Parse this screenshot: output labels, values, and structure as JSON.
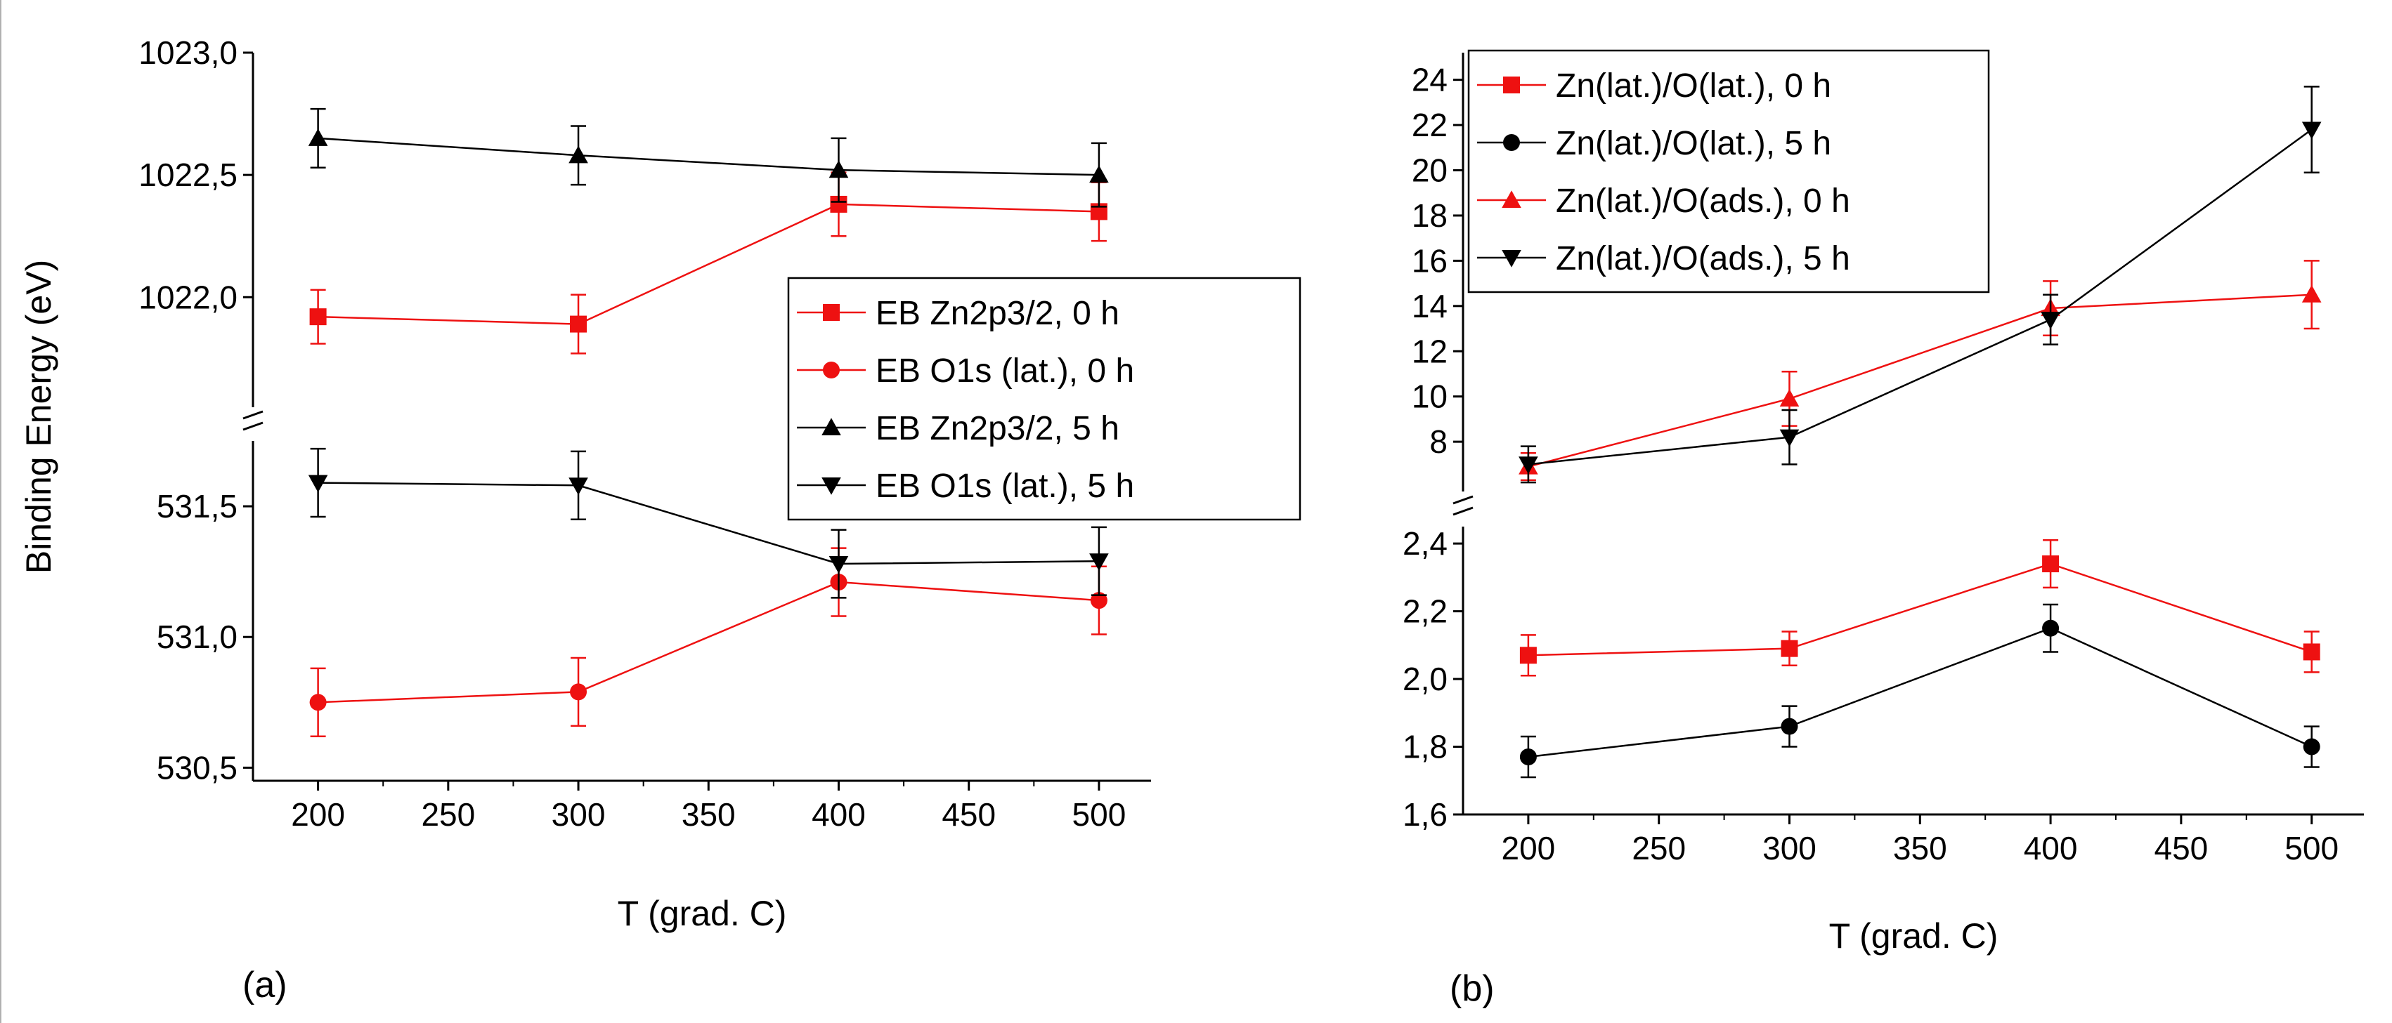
{
  "colors": {
    "red": "#ee1111",
    "black": "#000000"
  },
  "chart_data": [
    {
      "id": "a",
      "type": "line",
      "panel_label": "(a)",
      "xlabel": "T (grad. C)",
      "ylabel": "Binding Energy (eV)",
      "x": [
        200,
        300,
        400,
        500
      ],
      "xlim": [
        175,
        520
      ],
      "xticks": [
        "200",
        "250",
        "300",
        "350",
        "400",
        "450",
        "500"
      ],
      "broken_axis": true,
      "segments": {
        "upper": {
          "ylim": [
            1021.55,
            1023.0
          ],
          "yticks": [
            {
              "v": 1022.0,
              "t": "1022,0"
            },
            {
              "v": 1022.5,
              "t": "1022,5"
            },
            {
              "v": 1023.0,
              "t": "1023,0"
            }
          ]
        },
        "lower": {
          "ylim": [
            530.45,
            531.75
          ],
          "yticks": [
            {
              "v": 530.5,
              "t": "530,5"
            },
            {
              "v": 531.0,
              "t": "531,0"
            },
            {
              "v": 531.5,
              "t": "531,5"
            }
          ]
        }
      },
      "legend": {
        "placement": "middle-right"
      },
      "series": [
        {
          "name": "EB Zn2p3/2, 0 h",
          "marker": "square",
          "color": "red",
          "segment": "upper",
          "values": [
            1021.92,
            1021.89,
            1022.38,
            1022.35
          ],
          "errors": [
            0.11,
            0.12,
            0.13,
            0.12
          ]
        },
        {
          "name": "EB O1s (lat.), 0 h",
          "marker": "circle",
          "color": "red",
          "segment": "lower",
          "values": [
            530.75,
            530.79,
            531.21,
            531.14
          ],
          "errors": [
            0.13,
            0.13,
            0.13,
            0.13
          ]
        },
        {
          "name": "EB Zn2p3/2, 5 h",
          "marker": "triangle-up",
          "color": "black",
          "segment": "upper",
          "values": [
            1022.65,
            1022.58,
            1022.52,
            1022.5
          ],
          "errors": [
            0.12,
            0.12,
            0.13,
            0.13
          ]
        },
        {
          "name": "EB O1s (lat.), 5 h",
          "marker": "triangle-down",
          "color": "black",
          "segment": "lower",
          "values": [
            531.59,
            531.58,
            531.28,
            531.29
          ],
          "errors": [
            0.13,
            0.13,
            0.13,
            0.13
          ]
        }
      ]
    },
    {
      "id": "b",
      "type": "line",
      "panel_label": "(b)",
      "xlabel": "T (grad. C)",
      "ylabel": "",
      "x": [
        200,
        300,
        400,
        500
      ],
      "xlim": [
        175,
        520
      ],
      "xticks": [
        "200",
        "250",
        "300",
        "350",
        "400",
        "450",
        "500"
      ],
      "broken_axis": true,
      "segments": {
        "upper": {
          "ylim": [
            5.8,
            25.2
          ],
          "yticks": [
            {
              "v": 8,
              "t": "8"
            },
            {
              "v": 10,
              "t": "10"
            },
            {
              "v": 12,
              "t": "12"
            },
            {
              "v": 14,
              "t": "14"
            },
            {
              "v": 16,
              "t": "16"
            },
            {
              "v": 18,
              "t": "18"
            },
            {
              "v": 20,
              "t": "20"
            },
            {
              "v": 22,
              "t": "22"
            },
            {
              "v": 24,
              "t": "24"
            }
          ]
        },
        "lower": {
          "ylim": [
            1.6,
            2.45
          ],
          "yticks": [
            {
              "v": 1.6,
              "t": "1,6"
            },
            {
              "v": 1.8,
              "t": "1,8"
            },
            {
              "v": 2.0,
              "t": "2,0"
            },
            {
              "v": 2.2,
              "t": "2,2"
            },
            {
              "v": 2.4,
              "t": "2,4"
            }
          ]
        }
      },
      "legend": {
        "placement": "top-left"
      },
      "series": [
        {
          "name": "Zn(lat.)/O(lat.), 0 h",
          "marker": "square",
          "color": "red",
          "segment": "lower",
          "values": [
            2.07,
            2.09,
            2.34,
            2.08
          ],
          "errors": [
            0.06,
            0.05,
            0.07,
            0.06
          ]
        },
        {
          "name": "Zn(lat.)/O(lat.), 5 h",
          "marker": "circle",
          "color": "black",
          "segment": "lower",
          "values": [
            1.77,
            1.86,
            2.15,
            1.8
          ],
          "errors": [
            0.06,
            0.06,
            0.07,
            0.06
          ]
        },
        {
          "name": "Zn(lat.)/O(ads.), 0 h",
          "marker": "triangle-up",
          "color": "red",
          "segment": "upper",
          "values": [
            6.9,
            9.9,
            13.9,
            14.5
          ],
          "errors": [
            0.6,
            1.2,
            1.2,
            1.5
          ]
        },
        {
          "name": "Zn(lat.)/O(ads.), 5 h",
          "marker": "triangle-down",
          "color": "black",
          "segment": "upper",
          "values": [
            7.0,
            8.2,
            13.4,
            21.8
          ],
          "errors": [
            0.8,
            1.2,
            1.1,
            1.9
          ]
        }
      ]
    }
  ]
}
